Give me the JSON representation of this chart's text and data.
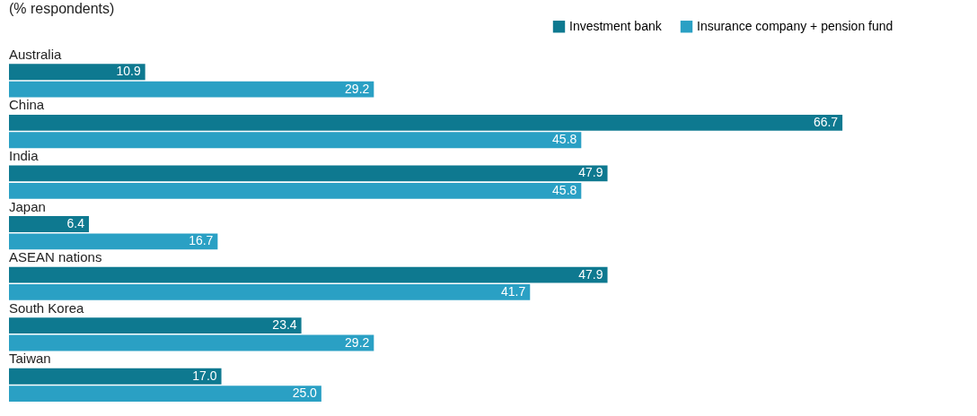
{
  "chart_data": {
    "type": "bar",
    "orientation": "horizontal",
    "subtitle": "(% respondents)",
    "categories": [
      "Australia",
      "China",
      "India",
      "Japan",
      "ASEAN nations",
      "South Korea",
      "Taiwan"
    ],
    "series": [
      {
        "name": "Investment bank",
        "color": "#0e7990",
        "values": [
          10.9,
          66.7,
          47.9,
          6.4,
          47.9,
          23.4,
          17.0
        ],
        "value_labels": [
          "10.9",
          "66.7",
          "47.9",
          "6.4",
          "47.9",
          "23.4",
          "17.0"
        ]
      },
      {
        "name": "Insurance company + pension fund",
        "color": "#2aa0c4",
        "values": [
          29.2,
          45.8,
          45.8,
          16.7,
          41.7,
          29.2,
          25.0
        ],
        "value_labels": [
          "29.2",
          "45.8",
          "45.8",
          "16.7",
          "41.7",
          "29.2",
          "25.0"
        ]
      }
    ],
    "legend": "top right",
    "grid": false
  }
}
